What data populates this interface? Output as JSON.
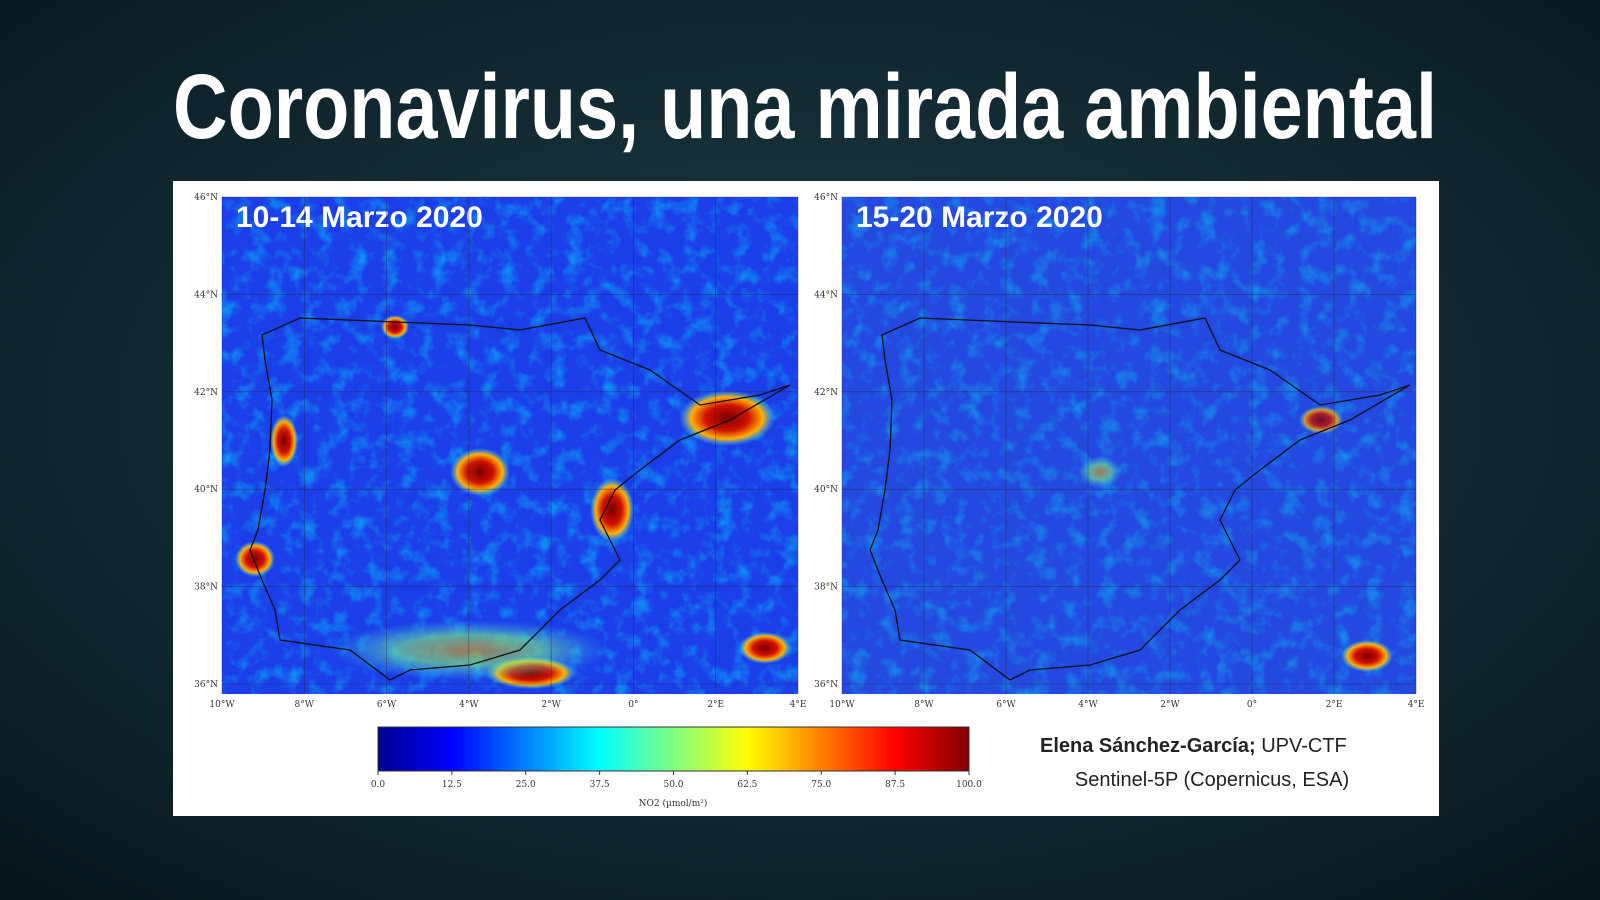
{
  "header": {
    "title": "Coronavirus, una mirada ambiental"
  },
  "maps": [
    {
      "title": "10-14 Marzo 2020"
    },
    {
      "title": "15-20 Marzo 2020"
    }
  ],
  "latitude_labels": [
    "46°N",
    "44°N",
    "42°N",
    "40°N",
    "38°N",
    "36°N"
  ],
  "longitude_labels": [
    "10°W",
    "8°W",
    "6°W",
    "4°W",
    "2°W",
    "0°",
    "2°E",
    "4°E"
  ],
  "colorbar": {
    "label": "NO2 (µmol/m²)",
    "ticks": [
      {
        "value": 0,
        "label": "0.0"
      },
      12.5,
      {
        "value": 25,
        "label": "25.0"
      },
      37.5,
      {
        "value": 50,
        "label": "50.0"
      },
      62.5,
      {
        "value": 75,
        "label": "75.0"
      },
      87.5,
      {
        "value": 100,
        "label": "100.0"
      }
    ]
  },
  "credits": {
    "author": "Elena Sánchez-García;",
    "affiliation": "UPV-CTF",
    "source": "Sentinel-5P (Copernicus, ESA)"
  }
}
